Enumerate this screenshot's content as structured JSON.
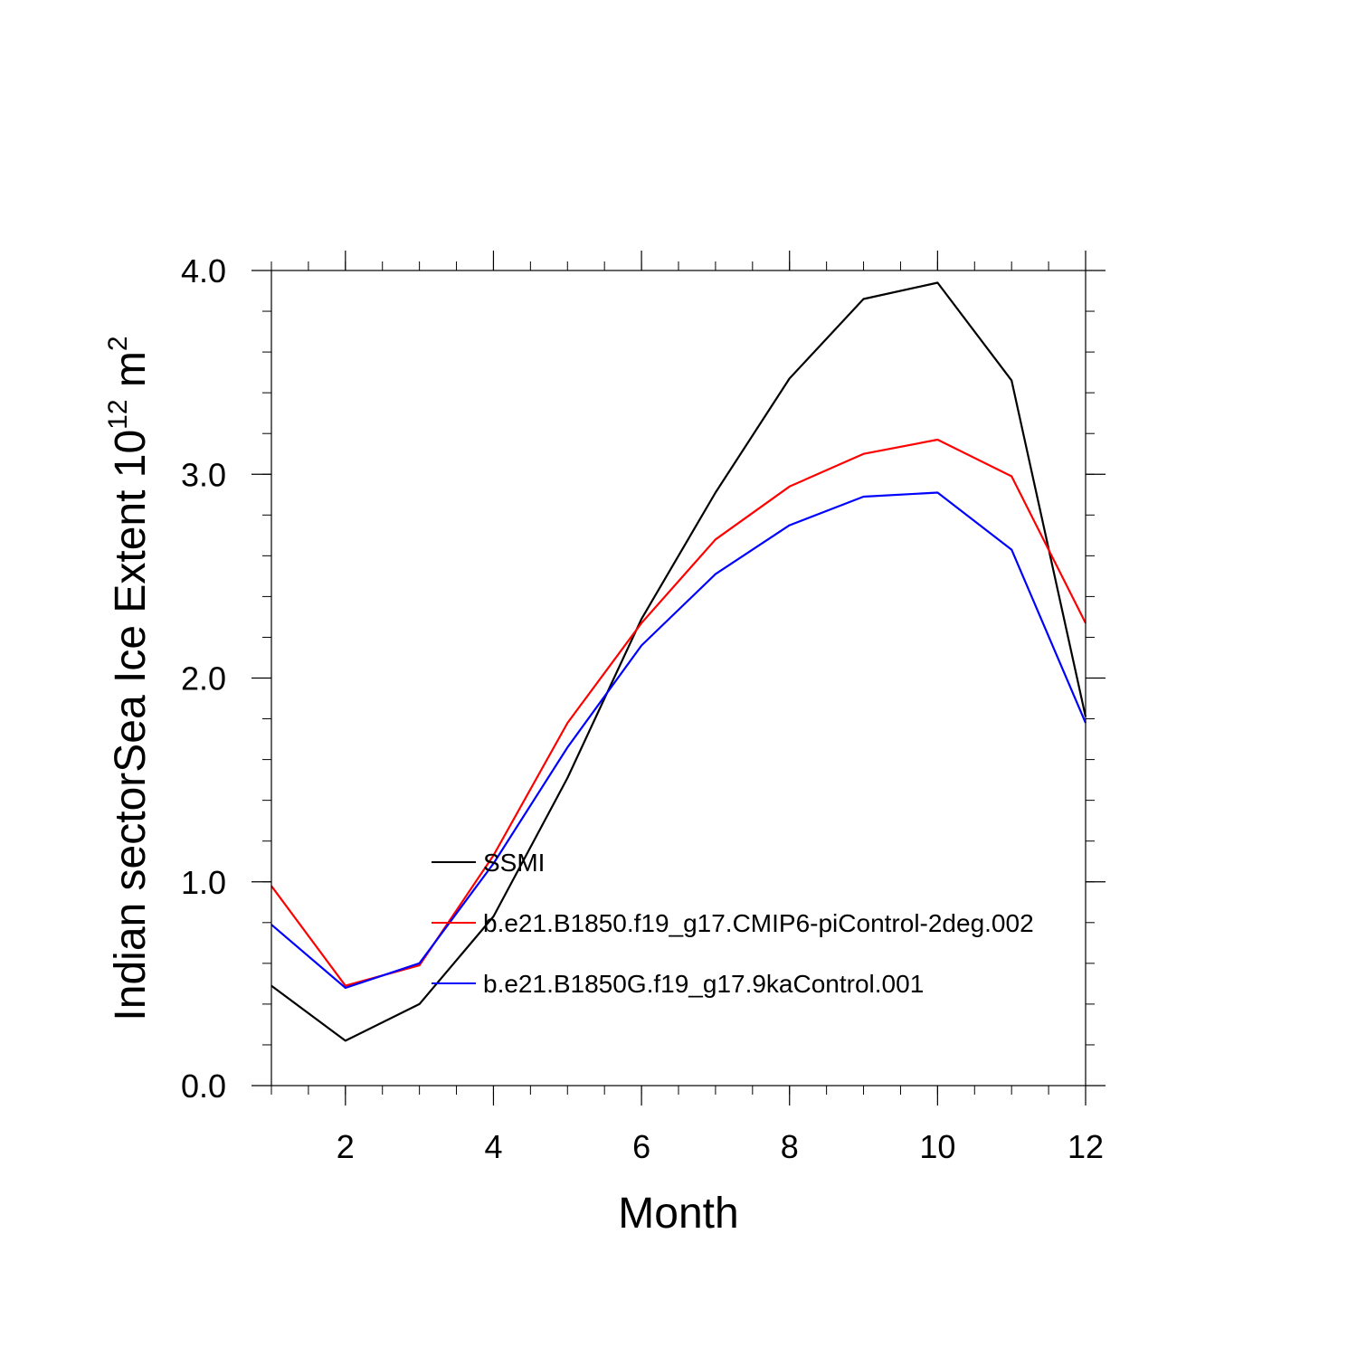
{
  "chart_data": {
    "type": "line",
    "title": "",
    "xlabel": "Month",
    "ylabel": {
      "main": "Indian sectorSea Ice Extent 10",
      "exp1": "12",
      "unit": " m",
      "exp2": "2"
    },
    "xlim": [
      1,
      12
    ],
    "ylim": [
      0,
      4
    ],
    "x_ticks": [
      2,
      4,
      6,
      8,
      10,
      12
    ],
    "x_tick_labels": [
      "2",
      "4",
      "6",
      "8",
      "10",
      "12"
    ],
    "y_ticks": [
      0,
      1,
      2,
      3,
      4
    ],
    "y_tick_labels": [
      "0.0",
      "1.0",
      "2.0",
      "3.0",
      "4.0"
    ],
    "grid": false,
    "legend_position": "center-bottom inside",
    "x": [
      1,
      2,
      3,
      4,
      5,
      6,
      7,
      8,
      9,
      10,
      11,
      12
    ],
    "series": [
      {
        "name": "SSMI",
        "color": "#000000",
        "values": [
          0.49,
          0.22,
          0.4,
          0.83,
          1.51,
          2.29,
          2.91,
          3.47,
          3.86,
          3.94,
          3.46,
          1.81
        ]
      },
      {
        "name": "b.e21.B1850.f19_g17.CMIP6-piControl-2deg.002",
        "color": "#ff0000",
        "values": [
          0.98,
          0.49,
          0.59,
          1.13,
          1.78,
          2.27,
          2.68,
          2.94,
          3.1,
          3.17,
          2.99,
          2.27
        ]
      },
      {
        "name": "b.e21.B1850G.f19_g17.9kaControl.001",
        "color": "#0000ff",
        "values": [
          0.79,
          0.48,
          0.6,
          1.09,
          1.66,
          2.16,
          2.51,
          2.75,
          2.89,
          2.91,
          2.63,
          1.78
        ]
      }
    ]
  }
}
